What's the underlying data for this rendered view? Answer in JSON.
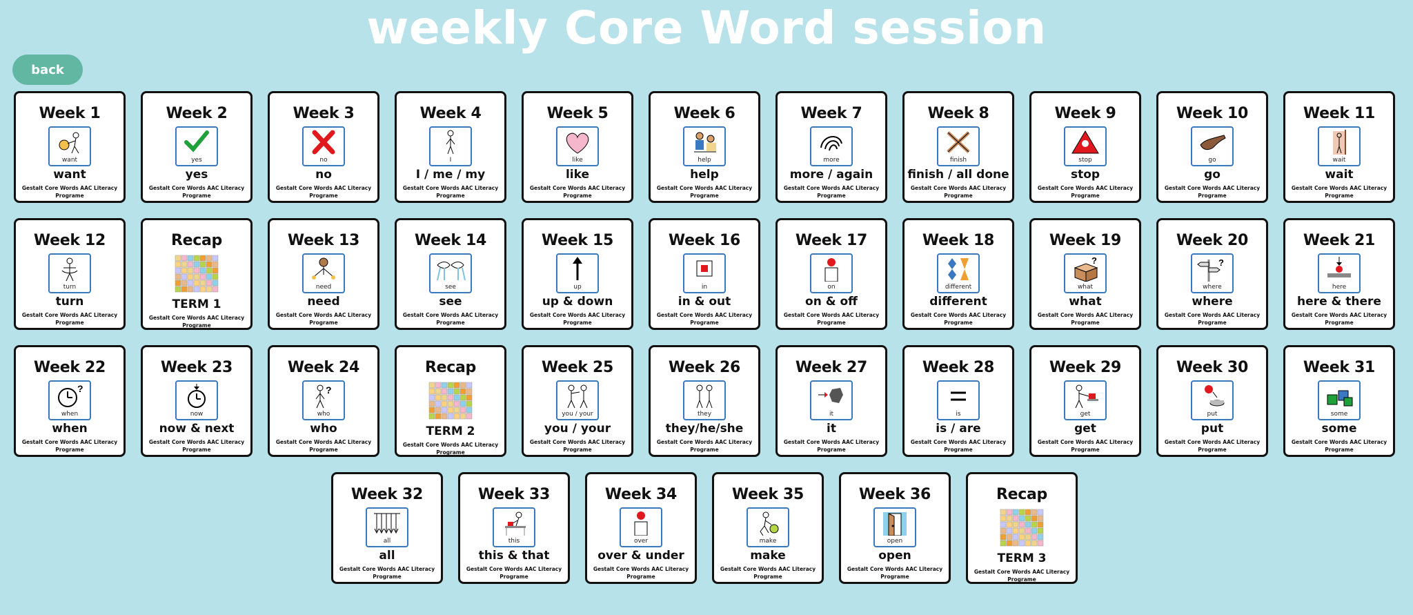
{
  "page": {
    "title": "weekly Core Word session",
    "back_label": "back"
  },
  "credit_line": "Gestalt Core Words AAC Literacy Programe",
  "cards": [
    {
      "title": "Week 1",
      "word": "want",
      "symbol_label": "want",
      "icon": "want-icon"
    },
    {
      "title": "Week 2",
      "word": "yes",
      "symbol_label": "yes",
      "icon": "check-icon"
    },
    {
      "title": "Week 3",
      "word": "no",
      "symbol_label": "no",
      "icon": "cross-icon"
    },
    {
      "title": "Week 4",
      "word": "I / me / my",
      "symbol_label": "I",
      "icon": "person-icon"
    },
    {
      "title": "Week 5",
      "word": "like",
      "symbol_label": "like",
      "icon": "heart-icon"
    },
    {
      "title": "Week 6",
      "word": "help",
      "symbol_label": "help",
      "icon": "help-icon"
    },
    {
      "title": "Week 7",
      "word": "more / again",
      "symbol_label": "more",
      "icon": "more-icon"
    },
    {
      "title": "Week 8",
      "word": "finish / all done",
      "symbol_label": "finish",
      "icon": "finish-icon"
    },
    {
      "title": "Week 9",
      "word": "stop",
      "symbol_label": "stop",
      "icon": "stop-icon"
    },
    {
      "title": "Week 10",
      "word": "go",
      "symbol_label": "go",
      "icon": "go-icon"
    },
    {
      "title": "Week 11",
      "word": "wait",
      "symbol_label": "wait",
      "icon": "wait-icon"
    },
    {
      "title": "Week 12",
      "word": "turn",
      "symbol_label": "turn",
      "icon": "turn-icon"
    },
    {
      "title": "Recap",
      "word": "TERM 1",
      "symbol_label": "",
      "icon": "recap-grid-icon"
    },
    {
      "title": "Week 13",
      "word": "need",
      "symbol_label": "need",
      "icon": "need-icon"
    },
    {
      "title": "Week 14",
      "word": "see",
      "symbol_label": "see",
      "icon": "see-icon"
    },
    {
      "title": "Week 15",
      "word": "up & down",
      "symbol_label": "up",
      "icon": "up-arrow-icon"
    },
    {
      "title": "Week 16",
      "word": "in & out",
      "symbol_label": "in",
      "icon": "in-icon"
    },
    {
      "title": "Week 17",
      "word": "on & off",
      "symbol_label": "on",
      "icon": "on-icon"
    },
    {
      "title": "Week 18",
      "word": "different",
      "symbol_label": "different",
      "icon": "different-icon"
    },
    {
      "title": "Week 19",
      "word": "what",
      "symbol_label": "what",
      "icon": "what-icon"
    },
    {
      "title": "Week 20",
      "word": "where",
      "symbol_label": "where",
      "icon": "where-icon"
    },
    {
      "title": "Week 21",
      "word": "here & there",
      "symbol_label": "here",
      "icon": "here-icon"
    },
    {
      "title": "Week 22",
      "word": "when",
      "symbol_label": "when",
      "icon": "clock-question-icon"
    },
    {
      "title": "Week 23",
      "word": "now & next",
      "symbol_label": "now",
      "icon": "clock-icon"
    },
    {
      "title": "Week 24",
      "word": "who",
      "symbol_label": "who",
      "icon": "who-icon"
    },
    {
      "title": "Recap",
      "word": "TERM 2",
      "symbol_label": "",
      "icon": "recap-grid-icon"
    },
    {
      "title": "Week 25",
      "word": "you / your",
      "symbol_label": "you / your",
      "icon": "you-icon"
    },
    {
      "title": "Week 26",
      "word": "they/he/she",
      "symbol_label": "they",
      "icon": "they-icon"
    },
    {
      "title": "Week 27",
      "word": "it",
      "symbol_label": "it",
      "icon": "it-icon"
    },
    {
      "title": "Week 28",
      "word": "is / are",
      "symbol_label": "is",
      "icon": "equals-icon"
    },
    {
      "title": "Week 29",
      "word": "get",
      "symbol_label": "get",
      "icon": "get-icon"
    },
    {
      "title": "Week 30",
      "word": "put",
      "symbol_label": "put",
      "icon": "put-icon"
    },
    {
      "title": "Week 31",
      "word": "some",
      "symbol_label": "some",
      "icon": "some-icon"
    },
    {
      "title": "Week 32",
      "word": "all",
      "symbol_label": "all",
      "icon": "all-icon"
    },
    {
      "title": "Week 33",
      "word": "this & that",
      "symbol_label": "this",
      "icon": "this-icon"
    },
    {
      "title": "Week 34",
      "word": "over & under",
      "symbol_label": "over",
      "icon": "over-icon"
    },
    {
      "title": "Week 35",
      "word": "make",
      "symbol_label": "make",
      "icon": "make-icon"
    },
    {
      "title": "Week 36",
      "word": "open",
      "symbol_label": "open",
      "icon": "open-door-icon"
    },
    {
      "title": "Recap",
      "word": "TERM 3",
      "symbol_label": "",
      "icon": "recap-grid-icon"
    }
  ]
}
